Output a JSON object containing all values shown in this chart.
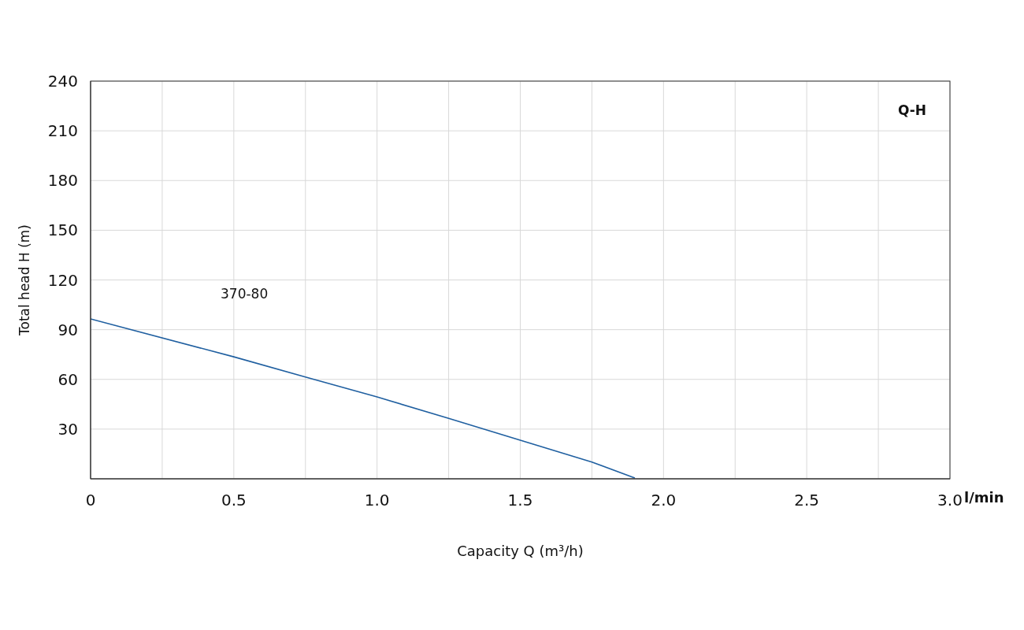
{
  "chart_data": {
    "type": "line",
    "xlabel": "Capacity Q (m³/h)",
    "ylabel": "Total head H (m)",
    "annotations": [
      "Q-H",
      "l/min"
    ],
    "x": [
      0,
      0.5,
      0.75,
      1.0,
      1.25,
      1.5,
      1.75,
      1.9
    ],
    "series": [
      {
        "name": "370-80",
        "color": "#1f5fa0",
        "values": [
          96.5,
          73.6,
          61.4,
          49.4,
          36.5,
          23.3,
          10.1,
          0.5
        ]
      }
    ],
    "xlim": [
      0,
      3
    ],
    "xticks": [
      {
        "value": 0,
        "label": "0"
      },
      {
        "value": 0.25,
        "label": null
      },
      {
        "value": 0.5,
        "label": "0.5"
      },
      {
        "value": 0.75,
        "label": null
      },
      {
        "value": 1,
        "label": "1.0"
      },
      {
        "value": 1.25,
        "label": null
      },
      {
        "value": 1.5,
        "label": "1.5"
      },
      {
        "value": 1.75,
        "label": null
      },
      {
        "value": 2,
        "label": "2.0"
      },
      {
        "value": 2.25,
        "label": null
      },
      {
        "value": 2.5,
        "label": "2.5"
      },
      {
        "value": 2.75,
        "label": null
      },
      {
        "value": 3,
        "label": "3.0"
      }
    ],
    "ylim": [
      0,
      240
    ],
    "yticks": [
      {
        "value": 0,
        "label": null
      },
      30,
      60,
      90,
      120,
      150,
      180,
      210,
      240
    ],
    "grid": true,
    "legend": false,
    "marker": "none",
    "line_style": "solid"
  }
}
